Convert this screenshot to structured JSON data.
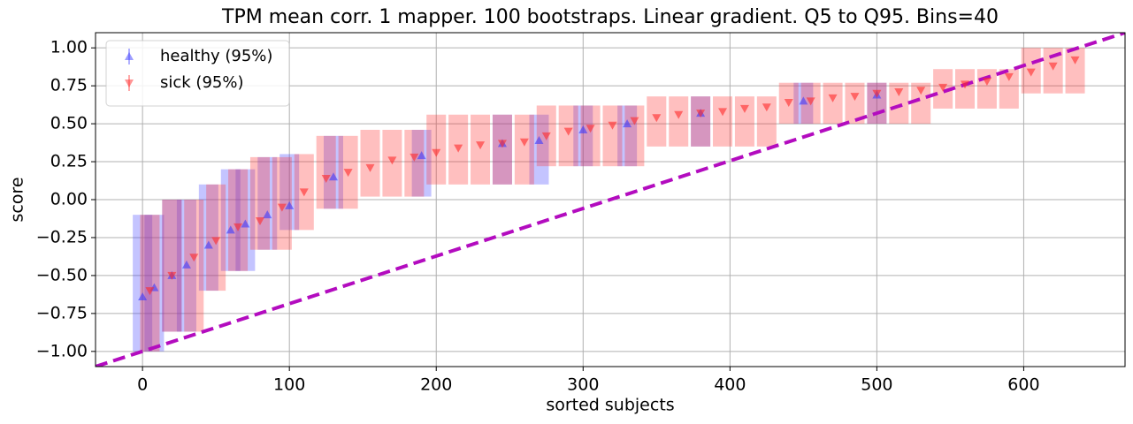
{
  "chart_data": {
    "type": "errorbar-scatter",
    "title": "TPM mean corr. 1 mapper. 100 bootstraps. Linear gradient. Q5 to Q95. Bins=40",
    "xlabel": "sorted subjects",
    "ylabel": "score",
    "xlim": [
      -32,
      669
    ],
    "ylim": [
      -1.1,
      1.1
    ],
    "xticks": [
      0,
      100,
      200,
      300,
      400,
      500,
      600
    ],
    "yticks": [
      {
        "value": -1,
        "label": "−1.00"
      },
      {
        "value": -0.75,
        "label": "−0.75"
      },
      {
        "value": -0.5,
        "label": "−0.50"
      },
      {
        "value": -0.25,
        "label": "−0.25"
      },
      {
        "value": 0,
        "label": "0.00"
      },
      {
        "value": 0.25,
        "label": "0.25"
      },
      {
        "value": 0.5,
        "label": "0.50"
      },
      {
        "value": 0.75,
        "label": "0.75"
      },
      {
        "value": 1,
        "label": "1.00"
      }
    ],
    "grid": true,
    "legend": "upper left",
    "reference_line": {
      "x": [
        -32,
        669
      ],
      "y": [
        -1.1,
        1.1
      ],
      "color": "#b30cbf"
    },
    "series": [
      {
        "name": "healthy (95%)",
        "color": "#3b3bff",
        "marker": "triangle-up",
        "x": [
          0,
          8,
          20,
          30,
          45,
          60,
          70,
          85,
          100,
          130,
          190,
          245,
          270,
          300,
          330,
          380,
          450,
          500
        ],
        "values": [
          -0.64,
          -0.58,
          -0.5,
          -0.43,
          -0.3,
          -0.2,
          -0.16,
          -0.1,
          -0.04,
          0.15,
          0.29,
          0.37,
          0.39,
          0.46,
          0.5,
          0.57,
          0.65,
          0.69
        ],
        "lower": [
          -1.0,
          -1.0,
          -0.87,
          -0.87,
          -0.6,
          -0.47,
          -0.47,
          -0.33,
          -0.2,
          -0.06,
          0.02,
          0.1,
          0.1,
          0.22,
          0.22,
          0.35,
          0.5,
          0.5
        ],
        "upper": [
          -0.1,
          -0.1,
          0.0,
          0.0,
          0.1,
          0.2,
          0.2,
          0.28,
          0.3,
          0.42,
          0.46,
          0.56,
          0.56,
          0.62,
          0.62,
          0.68,
          0.77,
          0.77
        ]
      },
      {
        "name": "sick (95%)",
        "color": "#ff2a2a",
        "marker": "triangle-down",
        "x": [
          5,
          20,
          35,
          50,
          65,
          80,
          95,
          110,
          125,
          140,
          155,
          170,
          185,
          200,
          215,
          230,
          245,
          260,
          275,
          290,
          305,
          320,
          335,
          350,
          365,
          380,
          395,
          410,
          425,
          440,
          455,
          470,
          485,
          500,
          515,
          530,
          545,
          560,
          575,
          590,
          605,
          620,
          635
        ],
        "values": [
          -0.6,
          -0.5,
          -0.38,
          -0.27,
          -0.18,
          -0.14,
          -0.05,
          0.05,
          0.14,
          0.18,
          0.21,
          0.26,
          0.28,
          0.31,
          0.34,
          0.36,
          0.37,
          0.38,
          0.42,
          0.45,
          0.47,
          0.49,
          0.52,
          0.54,
          0.56,
          0.57,
          0.58,
          0.6,
          0.61,
          0.64,
          0.65,
          0.67,
          0.68,
          0.7,
          0.71,
          0.72,
          0.74,
          0.76,
          0.78,
          0.81,
          0.84,
          0.88,
          0.92
        ],
        "lower": [
          -1.0,
          -0.87,
          -0.87,
          -0.6,
          -0.47,
          -0.33,
          -0.33,
          -0.2,
          -0.06,
          -0.06,
          0.02,
          0.02,
          0.02,
          0.1,
          0.1,
          0.1,
          0.1,
          0.1,
          0.22,
          0.22,
          0.22,
          0.22,
          0.22,
          0.35,
          0.35,
          0.35,
          0.35,
          0.35,
          0.35,
          0.5,
          0.5,
          0.5,
          0.5,
          0.5,
          0.5,
          0.5,
          0.6,
          0.6,
          0.6,
          0.6,
          0.7,
          0.7,
          0.7
        ],
        "upper": [
          -0.1,
          0.0,
          0.0,
          0.1,
          0.2,
          0.28,
          0.28,
          0.3,
          0.42,
          0.42,
          0.46,
          0.46,
          0.46,
          0.56,
          0.56,
          0.56,
          0.56,
          0.56,
          0.62,
          0.62,
          0.62,
          0.62,
          0.62,
          0.68,
          0.68,
          0.68,
          0.68,
          0.68,
          0.68,
          0.77,
          0.77,
          0.77,
          0.77,
          0.77,
          0.77,
          0.77,
          0.86,
          0.86,
          0.86,
          0.86,
          1.0,
          1.0,
          1.0
        ]
      }
    ]
  }
}
